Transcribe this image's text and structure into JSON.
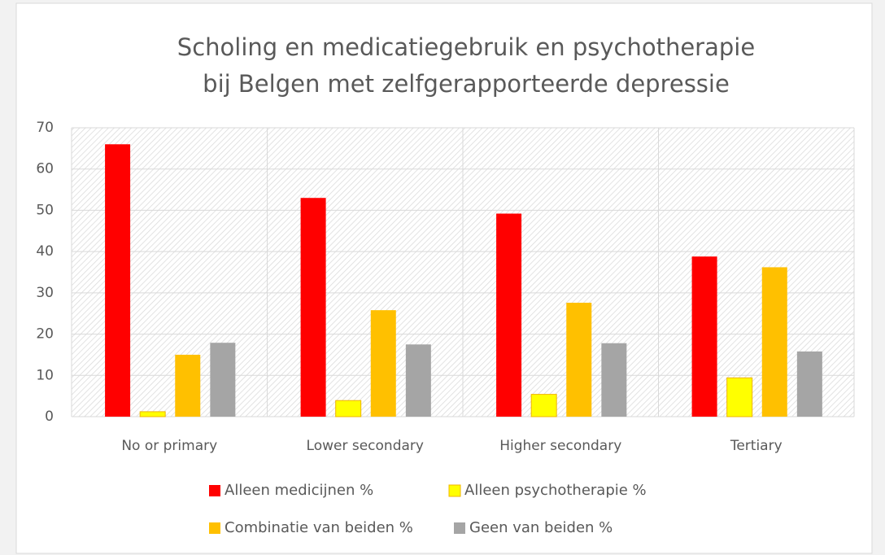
{
  "chart_data": {
    "type": "bar",
    "title": [
      "Scholing en medicatiegebruik en psychotherapie",
      "bij Belgen met zelfgerapporteerde depressie"
    ],
    "categories": [
      "No or primary",
      "Lower secondary",
      "Higher secondary",
      "Tertiary"
    ],
    "series": [
      {
        "name": "Alleen medicijnen %",
        "color": "#ff0000",
        "values": [
          66,
          53,
          49.2,
          38.8
        ]
      },
      {
        "name": "Alleen psychotherapie %",
        "color": "#ffff00",
        "values": [
          1.2,
          3.9,
          5.4,
          9.4
        ]
      },
      {
        "name": "Combinatie van beiden %",
        "color": "#ffc000",
        "values": [
          15,
          25.8,
          27.6,
          36.2
        ]
      },
      {
        "name": "Geen van beiden %",
        "color": "#a5a5a5",
        "values": [
          17.9,
          17.5,
          17.8,
          15.8
        ]
      }
    ],
    "ylim": [
      0,
      70
    ],
    "yticks": [
      0,
      10,
      20,
      30,
      40,
      50,
      60,
      70
    ],
    "grid": true,
    "legend": "bottom"
  }
}
